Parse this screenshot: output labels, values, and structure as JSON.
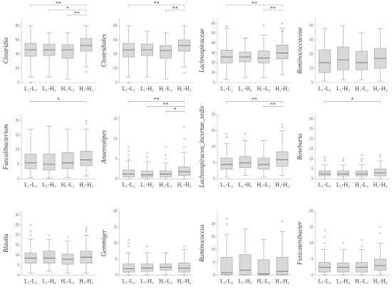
{
  "chart_data": [
    {
      "type": "box",
      "title": "Clostridia",
      "categories": [
        "L₁-L₂",
        "L₁-H₂",
        "H₁-L₂",
        "H₁-H₂"
      ],
      "ylim": [
        0,
        90
      ],
      "yticks": [
        0,
        20,
        40,
        60,
        80
      ],
      "color": "#d9d9d9",
      "boxes": [
        {
          "min": 8,
          "q1": 37,
          "median": 46,
          "q3": 55,
          "max": 80,
          "outliers": [
            0
          ]
        },
        {
          "min": 8,
          "q1": 38,
          "median": 46,
          "q3": 54,
          "max": 70
        },
        {
          "min": 5,
          "q1": 34,
          "median": 46,
          "q3": 53,
          "max": 70
        },
        {
          "min": 22,
          "q1": 44,
          "median": 52,
          "q3": 62,
          "max": 80,
          "outliers": [
            15
          ]
        }
      ],
      "brackets": [
        {
          "groups": [
            0,
            3
          ],
          "label": "**"
        },
        {
          "groups": [
            1,
            3
          ],
          "label": "*"
        },
        {
          "groups": [
            2,
            3
          ],
          "label": "**"
        }
      ]
    },
    {
      "type": "box",
      "title": "Clostridiales",
      "categories": [
        "L₁-L₂",
        "L₁-H₂",
        "H₁-L₂",
        "H₁-H₂"
      ],
      "ylim": [
        0,
        90
      ],
      "yticks": [
        0,
        20,
        40,
        60,
        80
      ],
      "color": "#d9d9d9",
      "boxes": [
        {
          "min": 8,
          "q1": 36,
          "median": 46,
          "q3": 55,
          "max": 80,
          "outliers": [
            0
          ]
        },
        {
          "min": 8,
          "q1": 38,
          "median": 46,
          "q3": 54,
          "max": 72
        },
        {
          "min": 5,
          "q1": 34,
          "median": 45,
          "q3": 52,
          "max": 70
        },
        {
          "min": 22,
          "q1": 44,
          "median": 52,
          "q3": 60,
          "max": 80,
          "outliers": [
            14
          ]
        }
      ],
      "brackets": [
        {
          "groups": [
            0,
            3
          ],
          "label": "**"
        },
        {
          "groups": [
            2,
            3
          ],
          "label": "**"
        }
      ]
    },
    {
      "type": "box",
      "title": "Lachnospiraceae",
      "categories": [
        "L₁-L₂",
        "L₁-H₂",
        "H₁-L₂",
        "H₁-H₂"
      ],
      "ylim": [
        0,
        65
      ],
      "yticks": [
        0,
        10,
        20,
        30,
        40,
        50,
        60
      ],
      "color": "#d9d9d9",
      "boxes": [
        {
          "min": 3,
          "q1": 20,
          "median": 26,
          "q3": 33,
          "max": 55,
          "outliers": [
            57
          ]
        },
        {
          "min": 5,
          "q1": 21,
          "median": 26,
          "q3": 31,
          "max": 45
        },
        {
          "min": 5,
          "q1": 20,
          "median": 25,
          "q3": 32,
          "max": 48,
          "outliers": [
            58
          ]
        },
        {
          "min": 8,
          "q1": 24,
          "median": 30,
          "q3": 38,
          "max": 55,
          "outliers": [
            52,
            60
          ]
        }
      ],
      "brackets": [
        {
          "groups": [
            0,
            3
          ],
          "label": "**"
        },
        {
          "groups": [
            2,
            3
          ],
          "label": "**"
        }
      ]
    },
    {
      "type": "box",
      "title": "Ruminococcaceae",
      "categories": [
        "L₁-L₂",
        "L₁-H₂",
        "H₁-L₂",
        "H₁-H₂"
      ],
      "ylim": [
        0,
        45
      ],
      "yticks": [
        0,
        10,
        20,
        30,
        40
      ],
      "color": "#d9d9d9",
      "boxes": [
        {
          "min": 1,
          "q1": 7,
          "median": 14,
          "q3": 23,
          "max": 38
        },
        {
          "min": 2,
          "q1": 9,
          "median": 16,
          "q3": 25,
          "max": 40
        },
        {
          "min": 2,
          "q1": 9,
          "median": 14,
          "q3": 22,
          "max": 35
        },
        {
          "min": 1,
          "q1": 10,
          "median": 17,
          "q3": 24,
          "max": 38
        }
      ]
    },
    {
      "type": "box",
      "title": "Faecalibacterium",
      "categories": [
        "L₁-L₂",
        "L₁-H₂",
        "H₁-L₂",
        "H₁-H₂"
      ],
      "ylim": [
        0,
        22
      ],
      "yticks": [
        0,
        5,
        10,
        15,
        20
      ],
      "color": "#d9d9d9",
      "boxes": [
        {
          "min": 0.5,
          "q1": 3.5,
          "median": 5.5,
          "q3": 8.5,
          "max": 17
        },
        {
          "min": 0.3,
          "q1": 3,
          "median": 5,
          "q3": 8.5,
          "max": 18
        },
        {
          "min": 0.5,
          "q1": 3.5,
          "median": 5.5,
          "q3": 9,
          "max": 17
        },
        {
          "min": 1,
          "q1": 4.5,
          "median": 6.5,
          "q3": 9.5,
          "max": 17,
          "outliers": [
            19,
            20
          ]
        }
      ],
      "brackets": [
        {
          "groups": [
            0,
            3
          ],
          "label": "*"
        }
      ]
    },
    {
      "type": "box",
      "title": "Anaerostipes",
      "categories": [
        "L₁-L₂",
        "L₁-H₂",
        "H₁-L₂",
        "H₁-H₂"
      ],
      "ylim": [
        0,
        16
      ],
      "yticks": [
        0,
        5,
        10,
        15
      ],
      "color": "#d9d9d9",
      "boxes": [
        {
          "min": 0,
          "q1": 0.5,
          "median": 1.2,
          "q3": 2.2,
          "max": 4.5,
          "outliers": [
            5,
            6,
            7,
            8
          ]
        },
        {
          "min": 0,
          "q1": 0.4,
          "median": 1,
          "q3": 2,
          "max": 4.3,
          "outliers": [
            5.5,
            6.5
          ]
        },
        {
          "min": 0,
          "q1": 0.5,
          "median": 1.2,
          "q3": 2,
          "max": 4,
          "outliers": [
            5,
            6,
            8
          ]
        },
        {
          "min": 0,
          "q1": 0.8,
          "median": 1.8,
          "q3": 3,
          "max": 6.5,
          "outliers": [
            8,
            10,
            13
          ]
        }
      ],
      "brackets": [
        {
          "groups": [
            0,
            3
          ],
          "label": "**"
        },
        {
          "groups": [
            1,
            3
          ],
          "label": "**"
        },
        {
          "groups": [
            2,
            3
          ],
          "label": "*"
        }
      ]
    },
    {
      "type": "box",
      "title": "Lachnospiracea_incertae_sedis",
      "categories": [
        "L₁-L₂",
        "L₁-H₂",
        "H₁-L₂",
        "H₁-H₂"
      ],
      "ylim": [
        0,
        20
      ],
      "yticks": [
        0,
        5,
        10,
        15,
        20
      ],
      "color": "#d9d9d9",
      "boxes": [
        {
          "min": 0.5,
          "q1": 3,
          "median": 4.5,
          "q3": 6.5,
          "max": 11,
          "outliers": [
            13,
            14
          ]
        },
        {
          "min": 1,
          "q1": 3.5,
          "median": 5,
          "q3": 7,
          "max": 12,
          "outliers": [
            14
          ]
        },
        {
          "min": 0.5,
          "q1": 3,
          "median": 4.5,
          "q3": 6.5,
          "max": 12
        },
        {
          "min": 1,
          "q1": 4,
          "median": 6,
          "q3": 8.5,
          "max": 15,
          "outliers": [
            16,
            17
          ]
        }
      ],
      "brackets": [
        {
          "groups": [
            0,
            3
          ],
          "label": "**"
        },
        {
          "groups": [
            2,
            3
          ],
          "label": "**"
        }
      ]
    },
    {
      "type": "box",
      "title": "Roseburia",
      "categories": [
        "L₁-L₂",
        "L₁-H₂",
        "H₁-L₂",
        "H₁-H₂"
      ],
      "ylim": [
        0,
        32
      ],
      "yticks": [
        0,
        5,
        10,
        15,
        20,
        25,
        30
      ],
      "color": "#d9d9d9",
      "boxes": [
        {
          "min": 0,
          "q1": 1.5,
          "median": 2.5,
          "q3": 4,
          "max": 7,
          "outliers": [
            9,
            10,
            11
          ]
        },
        {
          "min": 0,
          "q1": 1.5,
          "median": 2.5,
          "q3": 4,
          "max": 7,
          "outliers": [
            9,
            10
          ]
        },
        {
          "min": 0,
          "q1": 1.5,
          "median": 2.5,
          "q3": 4,
          "max": 7,
          "outliers": [
            9,
            10,
            12
          ]
        },
        {
          "min": 0,
          "q1": 1.5,
          "median": 3,
          "q3": 5,
          "max": 9,
          "outliers": [
            11,
            12
          ]
        }
      ],
      "brackets": [
        {
          "groups": [
            0,
            3
          ],
          "label": "*"
        }
      ]
    },
    {
      "type": "box",
      "title": "Blautia",
      "categories": [
        "L₁-L₂",
        "L₁-H₂",
        "H₁-L₂",
        "H₁-H₂"
      ],
      "ylim": [
        0,
        32
      ],
      "yticks": [
        0,
        5,
        10,
        15,
        20,
        25,
        30
      ],
      "color": "#d9d9d9",
      "boxes": [
        {
          "min": 1,
          "q1": 6,
          "median": 8.5,
          "q3": 11,
          "max": 18,
          "outliers": [
            20,
            22,
            25
          ]
        },
        {
          "min": 2,
          "q1": 6,
          "median": 8.5,
          "q3": 12,
          "max": 18,
          "outliers": [
            20
          ]
        },
        {
          "min": 1,
          "q1": 5.5,
          "median": 8,
          "q3": 10.5,
          "max": 17,
          "outliers": [
            19
          ]
        },
        {
          "min": 1,
          "q1": 6,
          "median": 9,
          "q3": 12,
          "max": 20,
          "outliers": [
            22,
            23,
            24
          ]
        }
      ]
    },
    {
      "type": "box",
      "title": "Gemmiger",
      "categories": [
        "L₁-L₂",
        "L₁-H₂",
        "H₁-L₂",
        "H₁-H₂"
      ],
      "ylim": [
        0,
        20
      ],
      "yticks": [
        0,
        5,
        10,
        15,
        20
      ],
      "color": "#d9d9d9",
      "boxes": [
        {
          "min": 0,
          "q1": 1,
          "median": 2,
          "q3": 3.5,
          "max": 7,
          "outliers": [
            9,
            10,
            11
          ]
        },
        {
          "min": 0,
          "q1": 1.2,
          "median": 2.2,
          "q3": 3.5,
          "max": 7,
          "outliers": [
            9
          ]
        },
        {
          "min": 0,
          "q1": 1.5,
          "median": 2.5,
          "q3": 3.5,
          "max": 7
        },
        {
          "min": 0,
          "q1": 1,
          "median": 2.2,
          "q3": 3.8,
          "max": 8,
          "outliers": [
            9
          ]
        }
      ]
    },
    {
      "type": "box",
      "title": "Ruminococcus",
      "categories": [
        "L₁-L₂",
        "L₁-H₂",
        "H₁-L₂",
        "H₁-H₂"
      ],
      "ylim": [
        0,
        25
      ],
      "yticks": [
        0,
        5,
        10,
        15,
        20
      ],
      "color": "#d9d9d9",
      "boxes": [
        {
          "min": 0,
          "q1": 0.2,
          "median": 1,
          "q3": 7,
          "max": 16,
          "outliers": [
            20,
            22
          ]
        },
        {
          "min": 0,
          "q1": 0.2,
          "median": 2,
          "q3": 8,
          "max": 18
        },
        {
          "min": 0,
          "q1": 0.1,
          "median": 0.5,
          "q3": 6,
          "max": 14
        },
        {
          "min": 0,
          "q1": 0.2,
          "median": 1.5,
          "q3": 7,
          "max": 17,
          "outliers": [
            21
          ]
        }
      ]
    },
    {
      "type": "box",
      "title": "Fusicatenibacter",
      "categories": [
        "L₁-L₂",
        "L₁-H₂",
        "H₁-L₂",
        "H₁-H₂"
      ],
      "ylim": [
        0,
        20
      ],
      "yticks": [
        0,
        5,
        10,
        15,
        20
      ],
      "color": "#d9d9d9",
      "boxes": [
        {
          "min": 0,
          "q1": 1,
          "median": 2.5,
          "q3": 4,
          "max": 8,
          "outliers": [
            10,
            12,
            14
          ]
        },
        {
          "min": 0,
          "q1": 1,
          "median": 2.5,
          "q3": 3.8,
          "max": 8,
          "outliers": [
            10
          ]
        },
        {
          "min": 0,
          "q1": 1,
          "median": 2.5,
          "q3": 4,
          "max": 8,
          "outliers": [
            9,
            11
          ]
        },
        {
          "min": 0,
          "q1": 1.5,
          "median": 3,
          "q3": 5,
          "max": 10,
          "outliers": [
            13,
            15
          ]
        }
      ]
    }
  ]
}
